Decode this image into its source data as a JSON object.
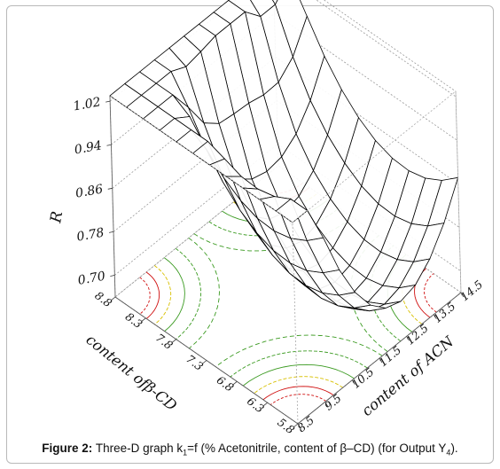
{
  "chart_data": {
    "type": "surface3d",
    "title": "",
    "zlabel": "R",
    "xlabel": "content of ACN",
    "ylabel": "content ofβ-CD",
    "x_ticks": [
      "8.5",
      "9.5",
      "10.5",
      "11.5",
      "12.5",
      "13.5",
      "14.5"
    ],
    "y_ticks": [
      "5.8",
      "6.3",
      "6.8",
      "7.3",
      "7.8",
      "8.3",
      "8.8"
    ],
    "z_ticks": [
      "0.70",
      "0.78",
      "0.86",
      "0.94",
      "1.02"
    ],
    "xlim": [
      8.5,
      14.5
    ],
    "ylim": [
      5.8,
      8.8
    ],
    "zlim": [
      0.66,
      1.03
    ],
    "grid": true,
    "surface_z_at_corners": {
      "acn_8.5_bcd_5.8": 1.0,
      "acn_14.5_bcd_5.8": 0.97,
      "acn_8.5_bcd_8.8": 1.02,
      "acn_14.5_bcd_8.8": 0.9
    },
    "surface_min": 0.68,
    "base_contour_colors": [
      "#d01010",
      "#d8c000",
      "#3a9a20"
    ],
    "surface_color": "#000000"
  },
  "caption": {
    "lead": "Figure 2:",
    "text_a": " Three-D graph k",
    "sub1": "1",
    "text_b": "=f (% Acetonitrile, content of β–CD) (for Output Y",
    "sub2": "4",
    "text_c": ")."
  }
}
